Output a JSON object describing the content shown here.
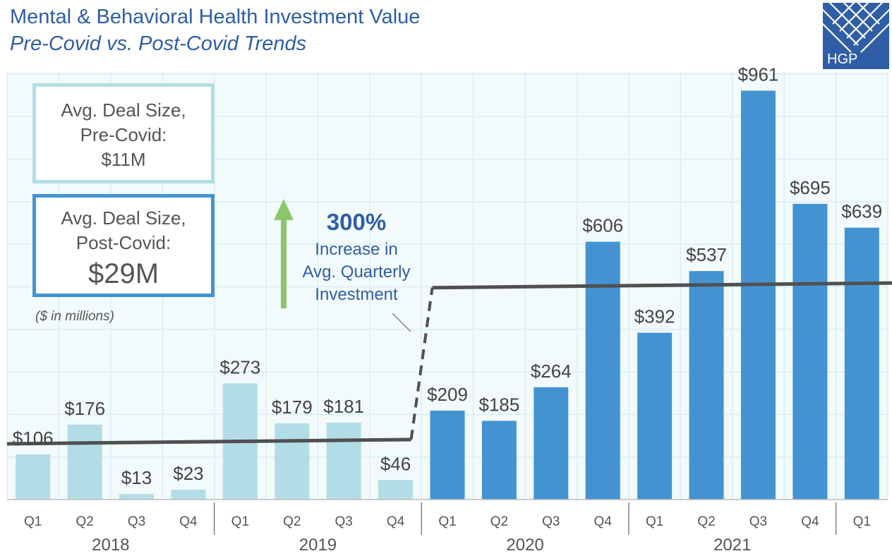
{
  "header": {
    "title": "Mental & Behavioral Health Investment Value",
    "subtitle": "Pre-Covid vs. Post-Covid Trends"
  },
  "logo": {
    "text": "HGP",
    "color": "#2f5ea6"
  },
  "boxes": {
    "pre": {
      "label": "Avg. Deal Size,",
      "period": "Pre-Covid:",
      "value": "$11M"
    },
    "post": {
      "label": "Avg. Deal Size,",
      "period": "Post-Covid:",
      "value": "$29M"
    }
  },
  "units_note": "($ in millions)",
  "callout": {
    "percent": "300%",
    "line1": "Increase in",
    "line2": "Avg. Quarterly",
    "line3": "Investment"
  },
  "colors": {
    "pre": "#b3dde6",
    "post": "#4393d3",
    "trend": "#505050",
    "arrow": "#8cc66a",
    "grid": "#d9eef2",
    "bg": "#f2fafb"
  },
  "chart_data": {
    "type": "bar",
    "categories": [
      "Q1",
      "Q2",
      "Q3",
      "Q4",
      "Q1",
      "Q2",
      "Q3",
      "Q4",
      "Q1",
      "Q2",
      "Q3",
      "Q4",
      "Q1",
      "Q2",
      "Q3",
      "Q4",
      "Q1"
    ],
    "years": [
      {
        "label": "2018",
        "start": 0,
        "end": 3
      },
      {
        "label": "2019",
        "start": 4,
        "end": 7
      },
      {
        "label": "2020",
        "start": 8,
        "end": 11
      },
      {
        "label": "2021",
        "start": 12,
        "end": 15
      }
    ],
    "values": [
      106,
      176,
      13,
      23,
      273,
      179,
      181,
      46,
      209,
      185,
      264,
      606,
      392,
      537,
      961,
      695,
      639
    ],
    "labels": [
      "$106",
      "$176",
      "$13",
      "$23",
      "$273",
      "$179",
      "$181",
      "$46",
      "$209",
      "$185",
      "$264",
      "$606",
      "$392",
      "$537",
      "$961",
      "$695",
      "$639"
    ],
    "period": [
      "pre",
      "pre",
      "pre",
      "pre",
      "pre",
      "pre",
      "pre",
      "pre",
      "post",
      "post",
      "post",
      "post",
      "post",
      "post",
      "post",
      "post",
      "post"
    ],
    "ylim": [
      0,
      1000
    ],
    "grid": true,
    "trend": {
      "pre_start": 131,
      "pre_end": 141,
      "post_start": 498,
      "post_end": 509
    }
  }
}
